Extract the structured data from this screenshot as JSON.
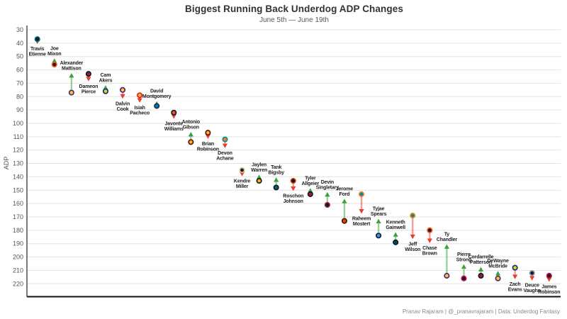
{
  "header": {
    "title": "Biggest Running Back Underdog ADP Changes",
    "subtitle": "June 5th — June 19th"
  },
  "footer": {
    "credit": "Pranav Rajaram | @_pranavrajaram | Data: Underdog Fantasy"
  },
  "chart_data": {
    "type": "scatter",
    "title": "Biggest Running Back Underdog ADP Changes",
    "subtitle": "June 5th — June 19th",
    "ylabel": "ADP",
    "y_axis": {
      "min": 30,
      "max": 220,
      "step": 10,
      "inverted": true,
      "grid": true
    },
    "legend": "none",
    "colors": {
      "up_arrow": "#3da23d",
      "down_arrow": "#e8402f",
      "grid": "#e3e3e3",
      "axis": "#333333"
    },
    "note": "dot = June 5th ADP (start), arrowhead = June 19th ADP (end); green = riser, red = faller",
    "players": [
      {
        "name": "Travis Etienne",
        "start": 37,
        "end": 39,
        "fill": "#101820",
        "ring": "#006778"
      },
      {
        "name": "Joe Mixon",
        "start": 56,
        "end": 53,
        "fill": "#1a1a1a",
        "ring": "#fb4f14"
      },
      {
        "name": "Alexander Mattison",
        "start": 77,
        "end": 64,
        "fill": "#ffc62f",
        "ring": "#4f2683"
      },
      {
        "name": "Dameon Pierce",
        "start": 63,
        "end": 67,
        "fill": "#a71930",
        "ring": "#03202f"
      },
      {
        "name": "Cam Akers",
        "start": 76,
        "end": 73,
        "fill": "#ffd100",
        "ring": "#003594"
      },
      {
        "name": "Dalvin Cook",
        "start": 75,
        "end": 80,
        "fill": "#ffc62f",
        "ring": "#4f2683"
      },
      {
        "name": "Isiah Pacheco",
        "start": 79,
        "end": 83,
        "fill": "#ffb81c",
        "ring": "#e31837"
      },
      {
        "name": "David Montgomery",
        "start": 87,
        "end": 85,
        "fill": "#0076b6",
        "ring": "#16324f"
      },
      {
        "name": "Javonte Williams",
        "start": 92,
        "end": 95,
        "fill": "#fb4f14",
        "ring": "#0a2343"
      },
      {
        "name": "Antonio Gibson",
        "start": 114,
        "end": 108,
        "fill": "#ffb612",
        "ring": "#5a1414"
      },
      {
        "name": "Brian Robinson",
        "start": 107,
        "end": 110,
        "fill": "#ffb612",
        "ring": "#5a1414"
      },
      {
        "name": "Devon Achane",
        "start": 112,
        "end": 117,
        "fill": "#f58220",
        "ring": "#008e97"
      },
      {
        "name": "Kendre Miller",
        "start": 135,
        "end": 138,
        "fill": "#101820",
        "ring": "#d3bc8d"
      },
      {
        "name": "Jaylen Warren",
        "start": 143,
        "end": 140,
        "fill": "#ffb612",
        "ring": "#101820"
      },
      {
        "name": "Tank Bigsby",
        "start": 148,
        "end": 142,
        "fill": "#006778",
        "ring": "#101820"
      },
      {
        "name": "Roschon Johnson",
        "start": 143,
        "end": 149,
        "fill": "#0b162a",
        "ring": "#c83803"
      },
      {
        "name": "Tyler Allgeier",
        "start": 153,
        "end": 150,
        "fill": "#a71930",
        "ring": "#101820"
      },
      {
        "name": "Devin Singletary",
        "start": 161,
        "end": 153,
        "fill": "#03202f",
        "ring": "#a71930"
      },
      {
        "name": "Jerome Ford",
        "start": 173,
        "end": 158,
        "fill": "#ff3c00",
        "ring": "#311d00"
      },
      {
        "name": "Raheem Mostert",
        "start": 153,
        "end": 166,
        "fill": "#008e97",
        "ring": "#f58220"
      },
      {
        "name": "Tyjae Spears",
        "start": 184,
        "end": 173,
        "fill": "#4b92db",
        "ring": "#0c2340"
      },
      {
        "name": "Kenneth Gainwell",
        "start": 189,
        "end": 183,
        "fill": "#004c54",
        "ring": "#101820"
      },
      {
        "name": "Jeff Wilson",
        "start": 169,
        "end": 185,
        "fill": "#008e97",
        "ring": "#f58220"
      },
      {
        "name": "Chase Brown",
        "start": 180,
        "end": 188,
        "fill": "#101820",
        "ring": "#fb4f14"
      },
      {
        "name": "Ty Chandler",
        "start": 214,
        "end": 192,
        "fill": "#ffc62f",
        "ring": "#4f2683"
      },
      {
        "name": "Pierre Strong",
        "start": 216,
        "end": 207,
        "fill": "#002244",
        "ring": "#c60c30"
      },
      {
        "name": "Cordarrelle Patterson",
        "start": 214,
        "end": 209,
        "fill": "#a71930",
        "ring": "#101820"
      },
      {
        "name": "DeWayne McBride",
        "start": 216,
        "end": 212,
        "fill": "#ffc62f",
        "ring": "#4f2683"
      },
      {
        "name": "Zach Evans",
        "start": 208,
        "end": 215,
        "fill": "#ffd100",
        "ring": "#003594"
      },
      {
        "name": "Deuce Vaughn",
        "start": 212,
        "end": 216,
        "fill": "#041e42",
        "ring": "#869397"
      },
      {
        "name": "James Robinson",
        "start": 214,
        "end": 217,
        "fill": "#002244",
        "ring": "#c60c30"
      }
    ]
  }
}
